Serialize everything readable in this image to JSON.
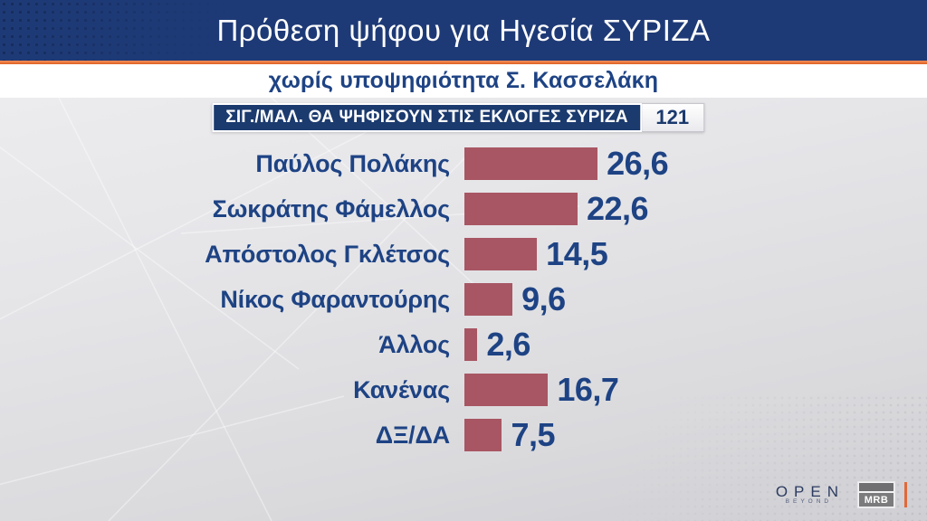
{
  "header": {
    "title": "Πρόθεση ψήφου για Ηγεσία ΣΥΡΙΖΑ",
    "subtitle": "χωρίς υποψηφιότητα Σ. Κασσελάκη"
  },
  "badge": {
    "label": "ΣΙΓ./ΜΑΛ. ΘΑ ΨΗΦΙΣΟΥΝ ΣΤΙΣ ΕΚΛΟΓΕΣ ΣΥΡΙΖΑ",
    "value": "121"
  },
  "chart_data": {
    "type": "bar",
    "orientation": "horizontal",
    "title": "Πρόθεση ψήφου για Ηγεσία ΣΥΡΙΖΑ",
    "subtitle": "χωρίς υποψηφιότητα Σ. Κασσελάκη",
    "sample_label": "ΣΙΓ./ΜΑΛ. ΘΑ ΨΗΦΙΣΟΥΝ ΣΤΙΣ ΕΚΛΟΓΕΣ ΣΥΡΙΖΑ",
    "sample_size": 121,
    "categories": [
      "Παύλος Πολάκης",
      "Σωκράτης Φάμελλος",
      "Απόστολος Γκλέτσος",
      "Νίκος Φαραντούρης",
      "Άλλος",
      "Κανένας",
      "ΔΞ/ΔΑ"
    ],
    "values": [
      26.6,
      22.6,
      14.5,
      9.6,
      2.6,
      16.7,
      7.5
    ],
    "value_labels": [
      "26,6",
      "22,6",
      "14,5",
      "9,6",
      "2,6",
      "16,7",
      "7,5"
    ],
    "xlim": [
      0,
      30
    ],
    "grid": false,
    "legend": false,
    "bar_color": "#a85663",
    "label_color": "#1e4384"
  },
  "footer": {
    "open_word": "OPEN",
    "open_tagline": "BEYOND",
    "mrb_label": "MRB"
  },
  "colors": {
    "banner_blue": "#1e3a76",
    "badge_navy": "#1b3a6e",
    "accent_orange": "#dd5f22",
    "bar_maroon": "#a85663",
    "text_navy": "#1e4384"
  }
}
